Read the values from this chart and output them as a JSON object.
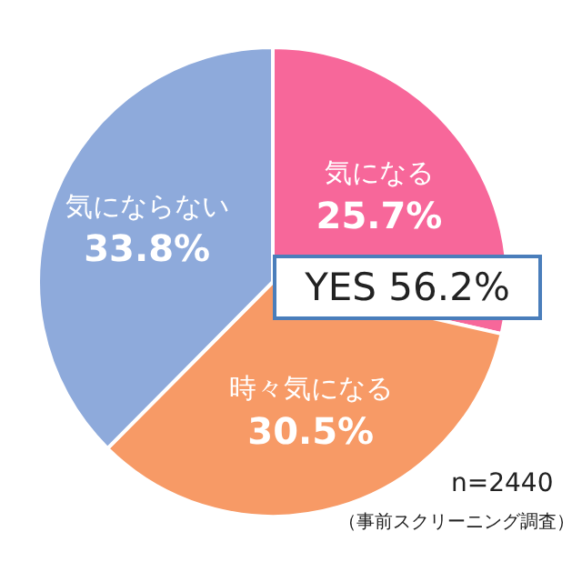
{
  "chart_data": {
    "type": "pie",
    "categories": [
      "気になる",
      "時々気になる",
      "気にならない"
    ],
    "values": [
      25.7,
      30.5,
      33.8
    ],
    "value_labels": [
      "25.7%",
      "30.5%",
      "33.8%"
    ],
    "colors": [
      "#f7679a",
      "#f79a66",
      "#8eaadb"
    ],
    "legend": false,
    "annotations": [
      "YES 56.2%",
      "n=2440",
      "（事前スクリーニング調査）"
    ]
  }
}
